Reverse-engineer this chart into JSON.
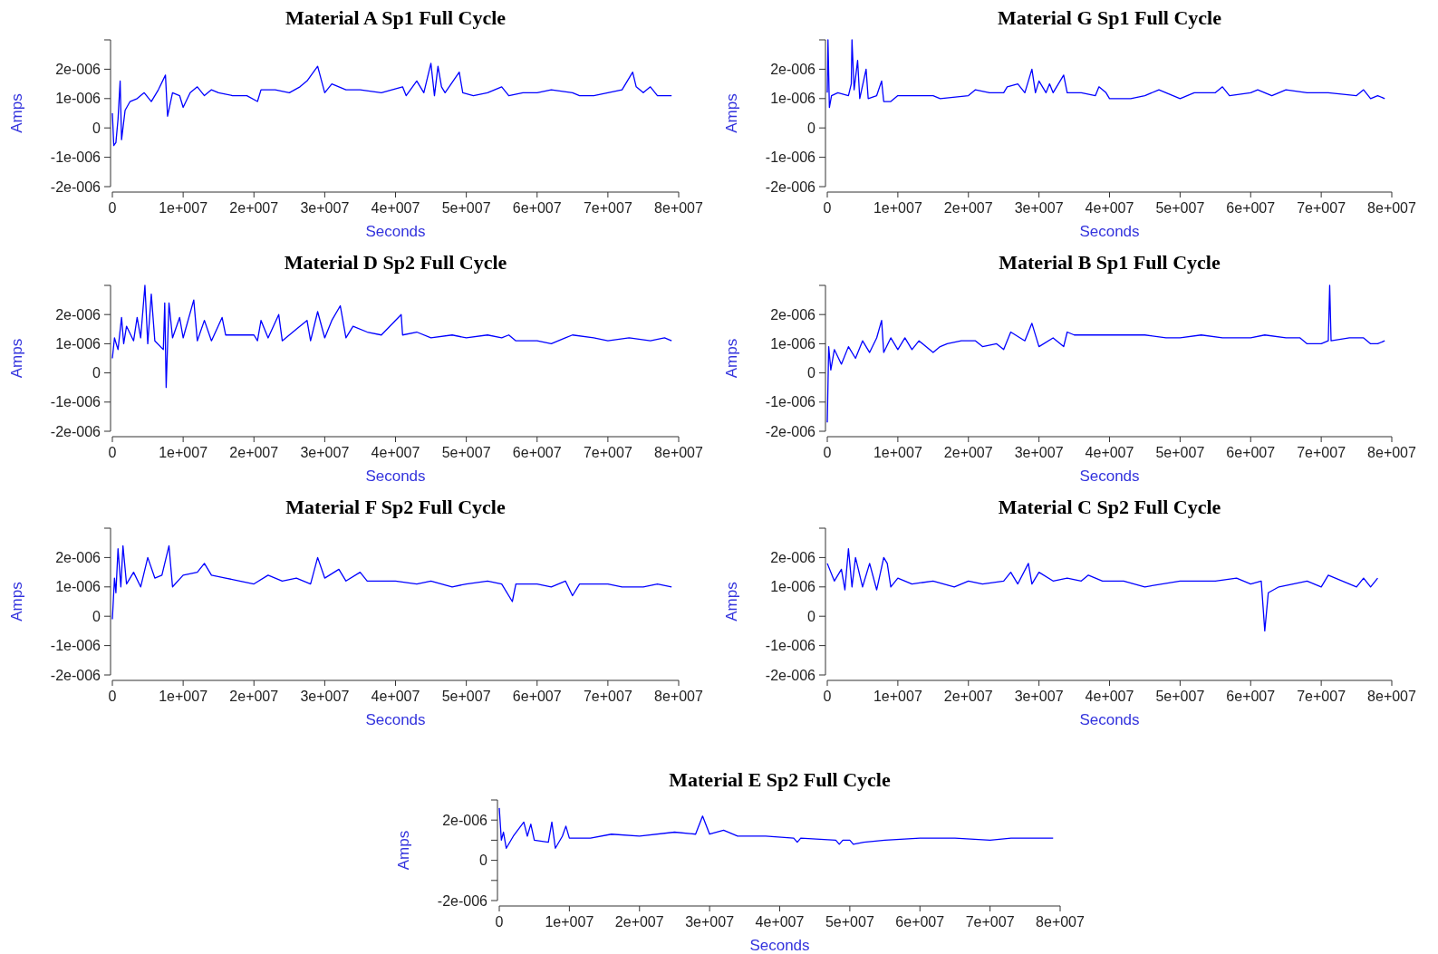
{
  "chart_data": [
    {
      "type": "line",
      "title": "Material A Sp1 Full Cycle",
      "xlabel": "Seconds",
      "ylabel": "Amps",
      "xlim": [
        0,
        80000000.0
      ],
      "ylim": [
        -2e-06,
        3e-06
      ],
      "xticks": [
        {
          "value": 0,
          "label": "0"
        },
        {
          "value": 10000000.0,
          "label": "1e+007"
        },
        {
          "value": 20000000.0,
          "label": "2e+007"
        },
        {
          "value": 30000000.0,
          "label": "3e+007"
        },
        {
          "value": 40000000.0,
          "label": "4e+007"
        },
        {
          "value": 50000000.0,
          "label": "5e+007"
        },
        {
          "value": 60000000.0,
          "label": "6e+007"
        },
        {
          "value": 70000000.0,
          "label": "7e+007"
        },
        {
          "value": 80000000.0,
          "label": "8e+007"
        }
      ],
      "yticks": [
        {
          "value": -2e-06,
          "label": "-2e-006"
        },
        {
          "value": -1e-06,
          "label": "-1e-006"
        },
        {
          "value": 0,
          "label": "0"
        },
        {
          "value": 1e-06,
          "label": "1e-006"
        },
        {
          "value": 2e-06,
          "label": "2e-006"
        },
        {
          "value": 3e-06,
          "label": null
        }
      ],
      "series": [
        {
          "color": "#0000ff",
          "x": [
            0,
            200000.0,
            500000.0,
            800000.0,
            1100000.0,
            1300000.0,
            1800000.0,
            2500000.0,
            3500000.0,
            4500000.0,
            5500000.0,
            6500000.0,
            7500000.0,
            7800000.0,
            8500000.0,
            9500000.0,
            10000000.0,
            11000000.0,
            12000000.0,
            13000000.0,
            14000000.0,
            15000000.0,
            17000000.0,
            19000000.0,
            20500000.0,
            21000000.0,
            23000000.0,
            25000000.0,
            26500000.0,
            27500000.0,
            29000000.0,
            30000000.0,
            31000000.0,
            33000000.0,
            35000000.0,
            38000000.0,
            41000000.0,
            41500000.0,
            43000000.0,
            44000000.0,
            45000000.0,
            45500000.0,
            46000000.0,
            46500000.0,
            47000000.0,
            49000000.0,
            49500000.0,
            51000000.0,
            53000000.0,
            55000000.0,
            56000000.0,
            58000000.0,
            60000000.0,
            62000000.0,
            65000000.0,
            66000000.0,
            68000000.0,
            70000000.0,
            72000000.0,
            73500000.0,
            74000000.0,
            75000000.0,
            76000000.0,
            77000000.0,
            78000000.0,
            79000000.0
          ],
          "values": [
            5e-07,
            -6e-07,
            -5e-07,
            3e-07,
            1.6e-06,
            -4e-07,
            6e-07,
            9e-07,
            1e-06,
            1.2e-06,
            9e-07,
            1.3e-06,
            1.8e-06,
            4e-07,
            1.2e-06,
            1.1e-06,
            7e-07,
            1.2e-06,
            1.4e-06,
            1.1e-06,
            1.3e-06,
            1.2e-06,
            1.1e-06,
            1.1e-06,
            9e-07,
            1.3e-06,
            1.3e-06,
            1.2e-06,
            1.4e-06,
            1.6e-06,
            2.1e-06,
            1.2e-06,
            1.5e-06,
            1.3e-06,
            1.3e-06,
            1.2e-06,
            1.4e-06,
            1.1e-06,
            1.6e-06,
            1.2e-06,
            2.2e-06,
            1.1e-06,
            2.1e-06,
            1.4e-06,
            1.2e-06,
            1.9e-06,
            1.2e-06,
            1.1e-06,
            1.2e-06,
            1.4e-06,
            1.1e-06,
            1.2e-06,
            1.2e-06,
            1.3e-06,
            1.2e-06,
            1.1e-06,
            1.1e-06,
            1.2e-06,
            1.3e-06,
            1.9e-06,
            1.4e-06,
            1.2e-06,
            1.4e-06,
            1.1e-06,
            1.1e-06,
            1.1e-06
          ]
        }
      ]
    },
    {
      "type": "line",
      "title": "Material G Sp1 Full Cycle",
      "xlabel": "Seconds",
      "ylabel": "Amps",
      "xlim": [
        0,
        80000000.0
      ],
      "ylim": [
        -2e-06,
        3e-06
      ],
      "xticks": [
        {
          "value": 0,
          "label": "0"
        },
        {
          "value": 10000000.0,
          "label": "1e+007"
        },
        {
          "value": 20000000.0,
          "label": "2e+007"
        },
        {
          "value": 30000000.0,
          "label": "3e+007"
        },
        {
          "value": 40000000.0,
          "label": "4e+007"
        },
        {
          "value": 50000000.0,
          "label": "5e+007"
        },
        {
          "value": 60000000.0,
          "label": "6e+007"
        },
        {
          "value": 70000000.0,
          "label": "7e+007"
        },
        {
          "value": 80000000.0,
          "label": "8e+007"
        }
      ],
      "yticks": [
        {
          "value": -2e-06,
          "label": "-2e-006"
        },
        {
          "value": -1e-06,
          "label": "-1e-006"
        },
        {
          "value": 0,
          "label": "0"
        },
        {
          "value": 1e-06,
          "label": "1e-006"
        },
        {
          "value": 2e-06,
          "label": "2e-006"
        },
        {
          "value": 3e-06,
          "label": null
        }
      ],
      "series": [
        {
          "color": "#0000ff",
          "x": [
            0,
            100000.0,
            300000.0,
            600000.0,
            1500000.0,
            3000000.0,
            3400000.0,
            3500000.0,
            3800000.0,
            4300000.0,
            4600000.0,
            5500000.0,
            5800000.0,
            7000000.0,
            7700000.0,
            8000000.0,
            9000000.0,
            10000000.0,
            13000000.0,
            15000000.0,
            16000000.0,
            20000000.0,
            21000000.0,
            23000000.0,
            25000000.0,
            25500000.0,
            27000000.0,
            28000000.0,
            29000000.0,
            29500000.0,
            30000000.0,
            31000000.0,
            31500000.0,
            32000000.0,
            33500000.0,
            34000000.0,
            36000000.0,
            38000000.0,
            38500000.0,
            39500000.0,
            40000000.0,
            43000000.0,
            45000000.0,
            47000000.0,
            49000000.0,
            50000000.0,
            52000000.0,
            55000000.0,
            56000000.0,
            57000000.0,
            60000000.0,
            61000000.0,
            63000000.0,
            65000000.0,
            68000000.0,
            71000000.0,
            75000000.0,
            76000000.0,
            77000000.0,
            78000000.0,
            79000000.0
          ],
          "values": [
            1.2e-06,
            3e-06,
            7e-07,
            1.1e-06,
            1.2e-06,
            1.1e-06,
            1.5e-06,
            3e-06,
            1.3e-06,
            2.3e-06,
            1e-06,
            2e-06,
            1e-06,
            1.1e-06,
            1.6e-06,
            9e-07,
            9e-07,
            1.1e-06,
            1.1e-06,
            1.1e-06,
            1e-06,
            1.1e-06,
            1.3e-06,
            1.2e-06,
            1.2e-06,
            1.4e-06,
            1.5e-06,
            1.2e-06,
            2e-06,
            1.2e-06,
            1.6e-06,
            1.2e-06,
            1.5e-06,
            1.2e-06,
            1.8e-06,
            1.2e-06,
            1.2e-06,
            1.1e-06,
            1.4e-06,
            1.2e-06,
            1e-06,
            1e-06,
            1.1e-06,
            1.3e-06,
            1.1e-06,
            1e-06,
            1.2e-06,
            1.2e-06,
            1.4e-06,
            1.1e-06,
            1.2e-06,
            1.3e-06,
            1.1e-06,
            1.3e-06,
            1.2e-06,
            1.2e-06,
            1.1e-06,
            1.3e-06,
            1e-06,
            1.1e-06,
            1e-06
          ]
        }
      ]
    },
    {
      "type": "line",
      "title": "Material D Sp2 Full Cycle",
      "xlabel": "Seconds",
      "ylabel": "Amps",
      "xlim": [
        0,
        80000000.0
      ],
      "ylim": [
        -2e-06,
        3e-06
      ],
      "xticks": [
        {
          "value": 0,
          "label": "0"
        },
        {
          "value": 10000000.0,
          "label": "1e+007"
        },
        {
          "value": 20000000.0,
          "label": "2e+007"
        },
        {
          "value": 30000000.0,
          "label": "3e+007"
        },
        {
          "value": 40000000.0,
          "label": "4e+007"
        },
        {
          "value": 50000000.0,
          "label": "5e+007"
        },
        {
          "value": 60000000.0,
          "label": "6e+007"
        },
        {
          "value": 70000000.0,
          "label": "7e+007"
        },
        {
          "value": 80000000.0,
          "label": "8e+007"
        }
      ],
      "yticks": [
        {
          "value": -2e-06,
          "label": "-2e-006"
        },
        {
          "value": -1e-06,
          "label": "-1e-006"
        },
        {
          "value": 0,
          "label": "0"
        },
        {
          "value": 1e-06,
          "label": "1e-006"
        },
        {
          "value": 2e-06,
          "label": "2e-006"
        },
        {
          "value": 3e-06,
          "label": null
        }
      ],
      "series": [
        {
          "color": "#0000ff",
          "x": [
            0,
            300000.0,
            800000.0,
            1300000.0,
            1600000.0,
            2000000.0,
            3000000.0,
            3500000.0,
            4000000.0,
            4600000.0,
            5000000.0,
            5500000.0,
            6000000.0,
            7200000.0,
            7400000.0,
            7600000.0,
            8000000.0,
            8500000.0,
            9500000.0,
            10000000.0,
            11500000.0,
            12000000.0,
            13000000.0,
            14000000.0,
            15500000.0,
            16000000.0,
            18000000.0,
            20000000.0,
            20500000.0,
            21000000.0,
            22000000.0,
            23500000.0,
            24000000.0,
            26000000.0,
            27500000.0,
            28000000.0,
            29000000.0,
            30000000.0,
            31000000.0,
            32200000.0,
            33000000.0,
            34000000.0,
            36000000.0,
            38000000.0,
            40800000.0,
            41000000.0,
            43000000.0,
            45000000.0,
            48000000.0,
            50000000.0,
            53000000.0,
            55000000.0,
            56000000.0,
            57000000.0,
            60000000.0,
            62000000.0,
            64000000.0,
            65000000.0,
            68000000.0,
            70000000.0,
            73000000.0,
            76000000.0,
            78000000.0,
            79000000.0
          ],
          "values": [
            5e-07,
            1.2e-06,
            8e-07,
            1.9e-06,
            1e-06,
            1.6e-06,
            1.1e-06,
            1.9e-06,
            1.2e-06,
            3e-06,
            1e-06,
            2.7e-06,
            1.1e-06,
            8e-07,
            2.4e-06,
            -5e-07,
            2.4e-06,
            1.2e-06,
            1.9e-06,
            1.2e-06,
            2.5e-06,
            1.1e-06,
            1.8e-06,
            1.1e-06,
            1.9e-06,
            1.3e-06,
            1.3e-06,
            1.3e-06,
            1.1e-06,
            1.8e-06,
            1.2e-06,
            2e-06,
            1.1e-06,
            1.5e-06,
            1.8e-06,
            1.1e-06,
            2.1e-06,
            1.2e-06,
            1.8e-06,
            2.3e-06,
            1.2e-06,
            1.6e-06,
            1.4e-06,
            1.3e-06,
            2e-06,
            1.3e-06,
            1.4e-06,
            1.2e-06,
            1.3e-06,
            1.2e-06,
            1.3e-06,
            1.2e-06,
            1.3e-06,
            1.1e-06,
            1.1e-06,
            1e-06,
            1.2e-06,
            1.3e-06,
            1.2e-06,
            1.1e-06,
            1.2e-06,
            1.1e-06,
            1.2e-06,
            1.1e-06
          ]
        }
      ]
    },
    {
      "type": "line",
      "title": "Material B Sp1 Full Cycle",
      "xlabel": "Seconds",
      "ylabel": "Amps",
      "xlim": [
        0,
        80000000.0
      ],
      "ylim": [
        -2e-06,
        3e-06
      ],
      "xticks": [
        {
          "value": 0,
          "label": "0"
        },
        {
          "value": 10000000.0,
          "label": "1e+007"
        },
        {
          "value": 20000000.0,
          "label": "2e+007"
        },
        {
          "value": 30000000.0,
          "label": "3e+007"
        },
        {
          "value": 40000000.0,
          "label": "4e+007"
        },
        {
          "value": 50000000.0,
          "label": "5e+007"
        },
        {
          "value": 60000000.0,
          "label": "6e+007"
        },
        {
          "value": 70000000.0,
          "label": "7e+007"
        },
        {
          "value": 80000000.0,
          "label": "8e+007"
        }
      ],
      "yticks": [
        {
          "value": -2e-06,
          "label": "-2e-006"
        },
        {
          "value": -1e-06,
          "label": "-1e-006"
        },
        {
          "value": 0,
          "label": "0"
        },
        {
          "value": 1e-06,
          "label": "1e-006"
        },
        {
          "value": 2e-06,
          "label": "2e-006"
        },
        {
          "value": 3e-06,
          "label": null
        }
      ],
      "series": [
        {
          "color": "#0000ff",
          "x": [
            0,
            200000.0,
            500000.0,
            1000000.0,
            2000000.0,
            3000000.0,
            4000000.0,
            5000000.0,
            6000000.0,
            7000000.0,
            7700000.0,
            8000000.0,
            9000000.0,
            10000000.0,
            11000000.0,
            12000000.0,
            13000000.0,
            15000000.0,
            16000000.0,
            17000000.0,
            19000000.0,
            21000000.0,
            22000000.0,
            24000000.0,
            25000000.0,
            26000000.0,
            28000000.0,
            29000000.0,
            30000000.0,
            32000000.0,
            33500000.0,
            34000000.0,
            35000000.0,
            40000000.0,
            45000000.0,
            48000000.0,
            50000000.0,
            53000000.0,
            56000000.0,
            60000000.0,
            62000000.0,
            65000000.0,
            67000000.0,
            68000000.0,
            70000000.0,
            71000000.0,
            71200000.0,
            71400000.0,
            74000000.0,
            76000000.0,
            77000000.0,
            78000000.0,
            79000000.0
          ],
          "values": [
            -1.7e-06,
            9e-07,
            1e-07,
            8e-07,
            3e-07,
            9e-07,
            5e-07,
            1.1e-06,
            7e-07,
            1.2e-06,
            1.8e-06,
            7e-07,
            1.2e-06,
            8e-07,
            1.2e-06,
            8e-07,
            1.1e-06,
            7e-07,
            9e-07,
            1e-06,
            1.1e-06,
            1.1e-06,
            9e-07,
            1e-06,
            8e-07,
            1.4e-06,
            1.1e-06,
            1.7e-06,
            9e-07,
            1.2e-06,
            9e-07,
            1.4e-06,
            1.3e-06,
            1.3e-06,
            1.3e-06,
            1.2e-06,
            1.2e-06,
            1.3e-06,
            1.2e-06,
            1.2e-06,
            1.3e-06,
            1.2e-06,
            1.2e-06,
            1e-06,
            1e-06,
            1.1e-06,
            3e-06,
            1.1e-06,
            1.2e-06,
            1.2e-06,
            1e-06,
            1e-06,
            1.1e-06
          ]
        }
      ]
    },
    {
      "type": "line",
      "title": "Material F Sp2 Full Cycle",
      "xlabel": "Seconds",
      "ylabel": "Amps",
      "xlim": [
        0,
        80000000.0
      ],
      "ylim": [
        -2e-06,
        3e-06
      ],
      "xticks": [
        {
          "value": 0,
          "label": "0"
        },
        {
          "value": 10000000.0,
          "label": "1e+007"
        },
        {
          "value": 20000000.0,
          "label": "2e+007"
        },
        {
          "value": 30000000.0,
          "label": "3e+007"
        },
        {
          "value": 40000000.0,
          "label": "4e+007"
        },
        {
          "value": 50000000.0,
          "label": "5e+007"
        },
        {
          "value": 60000000.0,
          "label": "6e+007"
        },
        {
          "value": 70000000.0,
          "label": "7e+007"
        },
        {
          "value": 80000000.0,
          "label": "8e+007"
        }
      ],
      "yticks": [
        {
          "value": -2e-06,
          "label": "-2e-006"
        },
        {
          "value": -1e-06,
          "label": "-1e-006"
        },
        {
          "value": 0,
          "label": "0"
        },
        {
          "value": 1e-06,
          "label": "1e-006"
        },
        {
          "value": 2e-06,
          "label": "2e-006"
        },
        {
          "value": 3e-06,
          "label": null
        }
      ],
      "series": [
        {
          "color": "#0000ff",
          "x": [
            0,
            300000.0,
            500000.0,
            800000.0,
            1200000.0,
            1500000.0,
            2000000.0,
            3000000.0,
            4000000.0,
            5000000.0,
            6000000.0,
            7000000.0,
            8000000.0,
            8500000.0,
            10000000.0,
            12000000.0,
            13000000.0,
            14000000.0,
            16000000.0,
            18000000.0,
            20000000.0,
            22000000.0,
            24000000.0,
            26000000.0,
            28000000.0,
            29000000.0,
            30000000.0,
            32000000.0,
            33000000.0,
            35000000.0,
            36000000.0,
            40000000.0,
            43000000.0,
            45000000.0,
            48000000.0,
            50000000.0,
            53000000.0,
            55000000.0,
            56500000.0,
            57000000.0,
            60000000.0,
            62000000.0,
            64000000.0,
            65000000.0,
            66000000.0,
            70000000.0,
            72000000.0,
            75000000.0,
            77000000.0,
            79000000.0
          ],
          "values": [
            -1e-07,
            1.3e-06,
            8e-07,
            2.3e-06,
            1e-06,
            2.4e-06,
            1.1e-06,
            1.5e-06,
            1e-06,
            2e-06,
            1.3e-06,
            1.4e-06,
            2.4e-06,
            1e-06,
            1.4e-06,
            1.5e-06,
            1.8e-06,
            1.4e-06,
            1.3e-06,
            1.2e-06,
            1.1e-06,
            1.4e-06,
            1.2e-06,
            1.3e-06,
            1.1e-06,
            2e-06,
            1.3e-06,
            1.6e-06,
            1.2e-06,
            1.5e-06,
            1.2e-06,
            1.2e-06,
            1.1e-06,
            1.2e-06,
            1e-06,
            1.1e-06,
            1.2e-06,
            1.1e-06,
            5e-07,
            1.1e-06,
            1.1e-06,
            1e-06,
            1.2e-06,
            7e-07,
            1.1e-06,
            1.1e-06,
            1e-06,
            1e-06,
            1.1e-06,
            1e-06
          ]
        }
      ]
    },
    {
      "type": "line",
      "title": "Material C Sp2 Full Cycle",
      "xlabel": "Seconds",
      "ylabel": "Amps",
      "xlim": [
        0,
        80000000.0
      ],
      "ylim": [
        -2e-06,
        3e-06
      ],
      "xticks": [
        {
          "value": 0,
          "label": "0"
        },
        {
          "value": 10000000.0,
          "label": "1e+007"
        },
        {
          "value": 20000000.0,
          "label": "2e+007"
        },
        {
          "value": 30000000.0,
          "label": "3e+007"
        },
        {
          "value": 40000000.0,
          "label": "4e+007"
        },
        {
          "value": 50000000.0,
          "label": "5e+007"
        },
        {
          "value": 60000000.0,
          "label": "6e+007"
        },
        {
          "value": 70000000.0,
          "label": "7e+007"
        },
        {
          "value": 80000000.0,
          "label": "8e+007"
        }
      ],
      "yticks": [
        {
          "value": -2e-06,
          "label": "-2e-006"
        },
        {
          "value": -1e-06,
          "label": "-1e-006"
        },
        {
          "value": 0,
          "label": "0"
        },
        {
          "value": 1e-06,
          "label": "1e-006"
        },
        {
          "value": 2e-06,
          "label": "2e-006"
        },
        {
          "value": 3e-06,
          "label": null
        }
      ],
      "series": [
        {
          "color": "#0000ff",
          "x": [
            0,
            1000000.0,
            2000000.0,
            2500000.0,
            3000000.0,
            3500000.0,
            4000000.0,
            5000000.0,
            6000000.0,
            7000000.0,
            8000000.0,
            8500000.0,
            9000000.0,
            10000000.0,
            12000000.0,
            15000000.0,
            18000000.0,
            20000000.0,
            22000000.0,
            25000000.0,
            26000000.0,
            27000000.0,
            28500000.0,
            29000000.0,
            30000000.0,
            32000000.0,
            34000000.0,
            36000000.0,
            37000000.0,
            39000000.0,
            42000000.0,
            45000000.0,
            50000000.0,
            55000000.0,
            58000000.0,
            60000000.0,
            61500000.0,
            62000000.0,
            62500000.0,
            64000000.0,
            66000000.0,
            68000000.0,
            70000000.0,
            71000000.0,
            73000000.0,
            75000000.0,
            76000000.0,
            77000000.0,
            78000000.0
          ],
          "values": [
            1.8e-06,
            1.2e-06,
            1.6e-06,
            9e-07,
            2.3e-06,
            1e-06,
            2e-06,
            1e-06,
            1.8e-06,
            9e-07,
            2e-06,
            1.8e-06,
            1e-06,
            1.3e-06,
            1.1e-06,
            1.2e-06,
            1e-06,
            1.2e-06,
            1.1e-06,
            1.2e-06,
            1.5e-06,
            1.1e-06,
            1.8e-06,
            1.1e-06,
            1.5e-06,
            1.2e-06,
            1.3e-06,
            1.2e-06,
            1.4e-06,
            1.2e-06,
            1.2e-06,
            1e-06,
            1.2e-06,
            1.2e-06,
            1.3e-06,
            1.1e-06,
            1.2e-06,
            -5e-07,
            8e-07,
            1e-06,
            1.1e-06,
            1.2e-06,
            1e-06,
            1.4e-06,
            1.2e-06,
            1e-06,
            1.3e-06,
            1e-06,
            1.3e-06
          ]
        }
      ]
    },
    {
      "type": "line",
      "title": "Material E Sp2 Full Cycle",
      "xlabel": "Seconds",
      "ylabel": "Amps",
      "xlim": [
        0,
        80000000.0
      ],
      "ylim": [
        -2e-06,
        3e-06
      ],
      "xticks": [
        {
          "value": 0,
          "label": "0"
        },
        {
          "value": 10000000.0,
          "label": "1e+007"
        },
        {
          "value": 20000000.0,
          "label": "2e+007"
        },
        {
          "value": 30000000.0,
          "label": "3e+007"
        },
        {
          "value": 40000000.0,
          "label": "4e+007"
        },
        {
          "value": 50000000.0,
          "label": "5e+007"
        },
        {
          "value": 60000000.0,
          "label": "6e+007"
        },
        {
          "value": 70000000.0,
          "label": "7e+007"
        },
        {
          "value": 80000000.0,
          "label": "8e+007"
        }
      ],
      "yticks": [
        {
          "value": -2e-06,
          "label": "-2e-006"
        },
        {
          "value": -1e-06,
          "label": null
        },
        {
          "value": 0,
          "label": "0"
        },
        {
          "value": 1e-06,
          "label": null
        },
        {
          "value": 2e-06,
          "label": "2e-006"
        },
        {
          "value": 3e-06,
          "label": null
        }
      ],
      "series": [
        {
          "color": "#0000ff",
          "x": [
            0,
            300000.0,
            600000.0,
            1000000.0,
            2000000.0,
            3500000.0,
            4000000.0,
            4500000.0,
            5000000.0,
            7000000.0,
            7500000.0,
            8000000.0,
            9000000.0,
            9500000.0,
            10000000.0,
            13000000.0,
            16000000.0,
            20000000.0,
            25000000.0,
            28000000.0,
            29000000.0,
            30000000.0,
            32000000.0,
            34000000.0,
            38000000.0,
            42000000.0,
            42500000.0,
            43000000.0,
            48000000.0,
            48500000.0,
            49000000.0,
            50000000.0,
            50500000.0,
            52000000.0,
            55000000.0,
            60000000.0,
            65000000.0,
            70000000.0,
            73000000.0,
            76000000.0,
            79000000.0
          ],
          "values": [
            2.6e-06,
            1e-06,
            1.4e-06,
            6e-07,
            1.2e-06,
            1.9e-06,
            1.2e-06,
            1.8e-06,
            1e-06,
            9e-07,
            1.9e-06,
            6e-07,
            1.2e-06,
            1.7e-06,
            1.1e-06,
            1.1e-06,
            1.3e-06,
            1.2e-06,
            1.4e-06,
            1.3e-06,
            2.2e-06,
            1.3e-06,
            1.5e-06,
            1.2e-06,
            1.2e-06,
            1.1e-06,
            9e-07,
            1.1e-06,
            1e-06,
            8e-07,
            1e-06,
            1e-06,
            8e-07,
            9e-07,
            1e-06,
            1.1e-06,
            1.1e-06,
            1e-06,
            1.1e-06,
            1.1e-06,
            1.1e-06
          ]
        }
      ]
    }
  ]
}
